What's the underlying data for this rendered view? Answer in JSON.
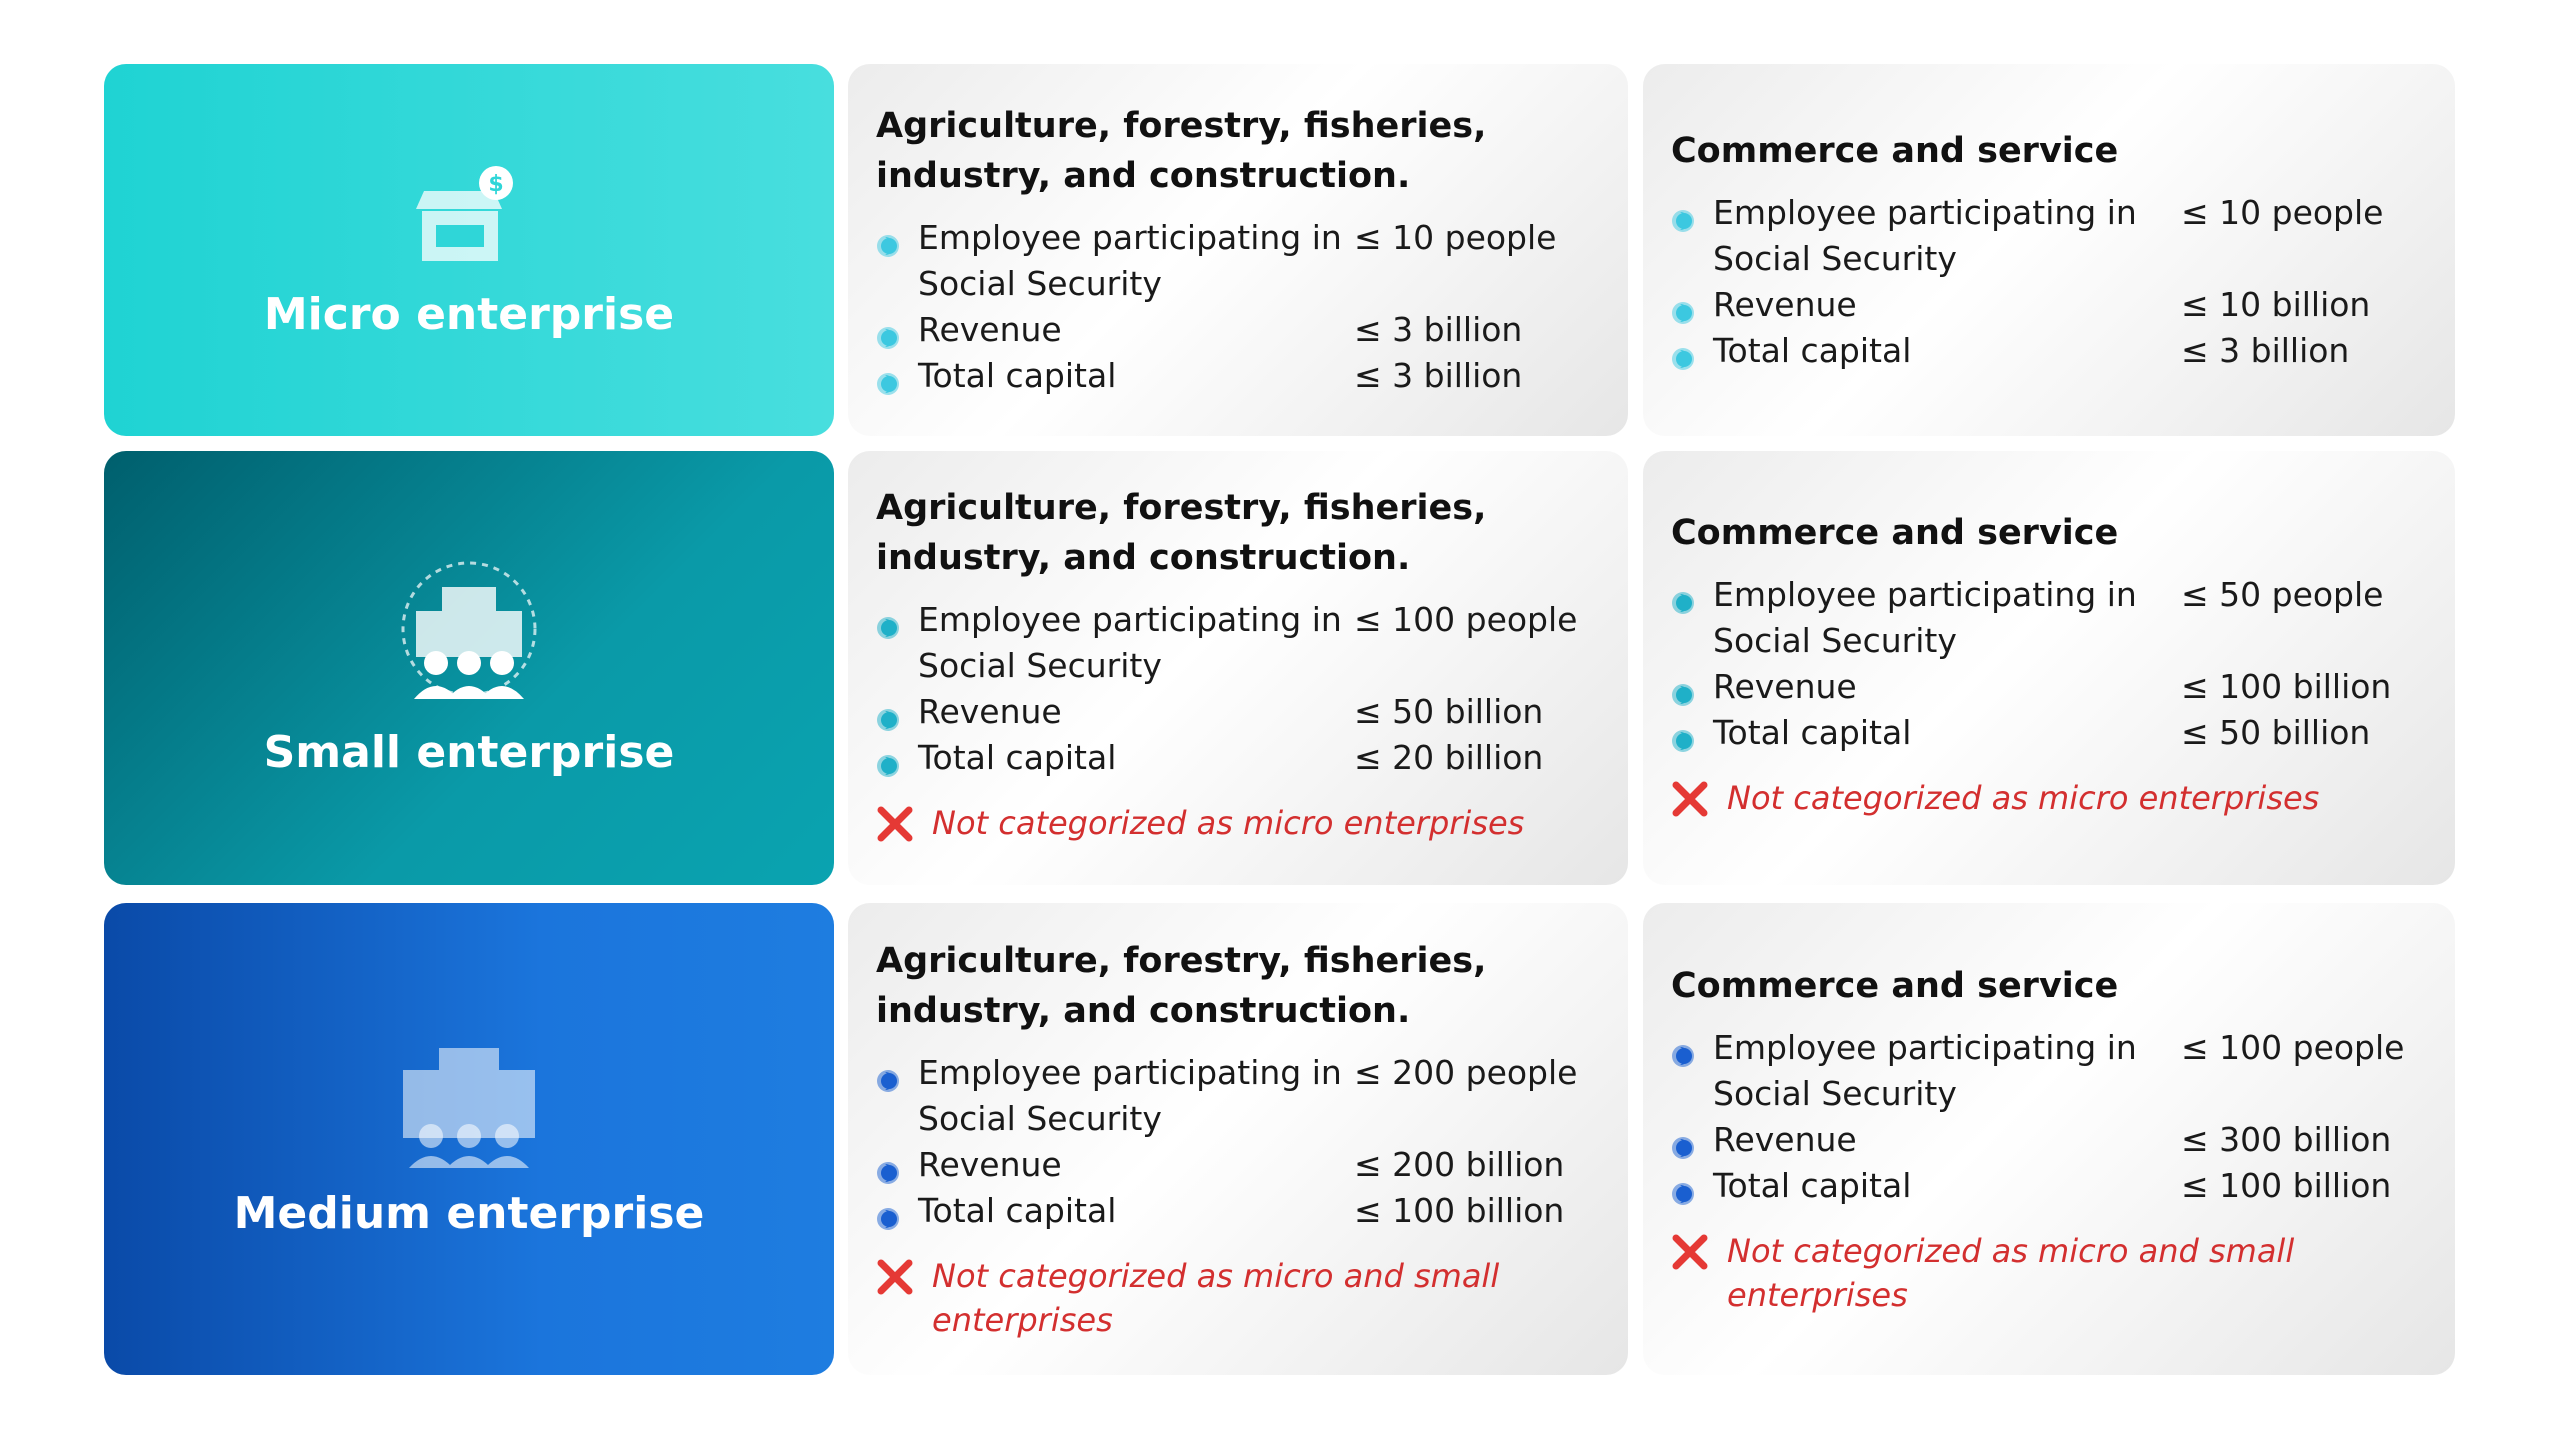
{
  "rows": [
    {
      "label": "Micro enterprise",
      "panels": [
        {
          "title": "Agriculture, forestry, fisheries, industry, and construction.",
          "criteria": [
            {
              "label": "Employee participating in Social Security",
              "value": "≤ 10 people"
            },
            {
              "label": "Revenue",
              "value": "≤ 3 billion"
            },
            {
              "label": "Total capital",
              "value": "≤ 3 billion"
            }
          ]
        },
        {
          "title": "Commerce and service",
          "criteria": [
            {
              "label": "Employee participating in Social Security",
              "value": "≤ 10 people"
            },
            {
              "label": "Revenue",
              "value": "≤ 10 billion"
            },
            {
              "label": "Total capital",
              "value": "≤ 3 billion"
            }
          ]
        }
      ]
    },
    {
      "label": "Small enterprise",
      "panels": [
        {
          "title": "Agriculture, forestry, fisheries, industry, and construction.",
          "criteria": [
            {
              "label": "Employee participating in Social Security",
              "value": "≤ 100 people"
            },
            {
              "label": "Revenue",
              "value": "≤ 50 billion"
            },
            {
              "label": "Total capital",
              "value": "≤ 20 billion"
            }
          ],
          "note": "Not categorized as micro enterprises"
        },
        {
          "title": "Commerce and service",
          "criteria": [
            {
              "label": "Employee participating in Social Security",
              "value": "≤ 50 people"
            },
            {
              "label": "Revenue",
              "value": "≤ 100 billion"
            },
            {
              "label": "Total capital",
              "value": "≤ 50 billion"
            }
          ],
          "note": "Not categorized as micro enterprises"
        }
      ]
    },
    {
      "label": "Medium enterprise",
      "panels": [
        {
          "title": "Agriculture, forestry, fisheries, industry, and construction.",
          "criteria": [
            {
              "label": "Employee participating in Social Security",
              "value": "≤ 200 people"
            },
            {
              "label": "Revenue",
              "value": "≤ 200 billion"
            },
            {
              "label": "Total capital",
              "value": "≤ 100 billion"
            }
          ],
          "note": "Not categorized as micro and small enterprises"
        },
        {
          "title": "Commerce and service",
          "criteria": [
            {
              "label": "Employee participating in Social Security",
              "value": "≤ 100 people"
            },
            {
              "label": "Revenue",
              "value": "≤ 300 billion"
            },
            {
              "label": "Total capital",
              "value": "≤ 100 billion"
            }
          ],
          "note": "Not categorized as micro and small enterprises"
        }
      ]
    }
  ]
}
